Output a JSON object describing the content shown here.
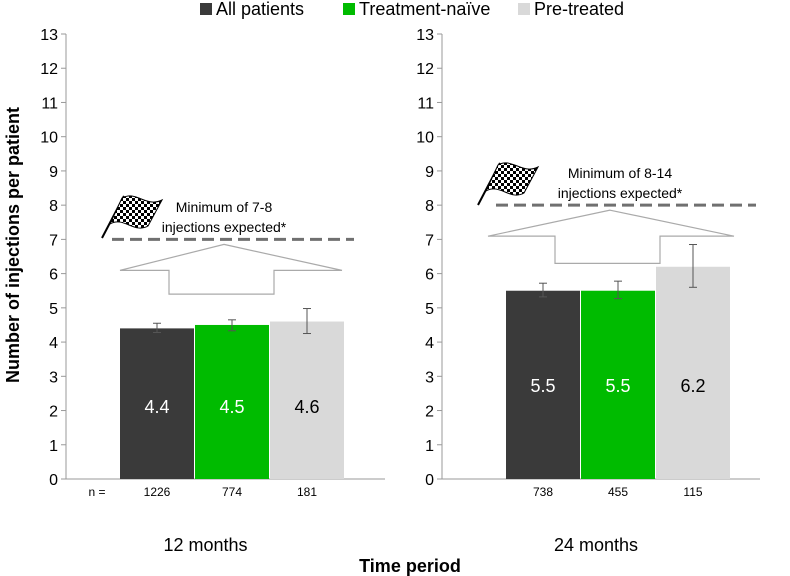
{
  "chart_data": {
    "type": "bar",
    "xlabel": "Time period",
    "ylabel": "Number of injections per patient",
    "ylim": [
      0,
      13
    ],
    "yticks": [
      "0",
      "1",
      "2",
      "3",
      "4",
      "5",
      "6",
      "7",
      "8",
      "9",
      "10",
      "11",
      "12",
      "13"
    ],
    "legend_position": "top",
    "grid": false,
    "colors": {
      "All patients": "#3a3a3a",
      "Treatment-naïve": "#00bb00",
      "Pre-treated": "#d9d9d9"
    },
    "series": [
      {
        "name": "All patients",
        "values": [
          4.4,
          5.5
        ],
        "labels": [
          "4.4",
          "5.5"
        ],
        "error_low": [
          4.28,
          5.32
        ],
        "error_high": [
          4.55,
          5.72
        ],
        "n": [
          "1226",
          "738"
        ]
      },
      {
        "name": "Treatment-naïve",
        "values": [
          4.5,
          5.5
        ],
        "labels": [
          "4.5",
          "5.5"
        ],
        "error_low": [
          4.33,
          5.27
        ],
        "error_high": [
          4.65,
          5.78
        ],
        "n": [
          "774",
          "455"
        ]
      },
      {
        "name": "Pre-treated",
        "values": [
          4.6,
          6.2
        ],
        "labels": [
          "4.6",
          "6.2"
        ],
        "error_low": [
          4.25,
          5.6
        ],
        "error_high": [
          4.98,
          6.85
        ],
        "n": [
          "181",
          "115"
        ]
      }
    ],
    "panels": [
      {
        "category": "12 months",
        "n_prefix": "n =",
        "target_value": 7,
        "target_text": [
          "Minimum of 7-8",
          "injections expected*"
        ]
      },
      {
        "category": "24 months",
        "n_prefix": "",
        "target_value": 8,
        "target_text": [
          "Minimum of 8-14",
          "injections expected*"
        ]
      }
    ]
  }
}
